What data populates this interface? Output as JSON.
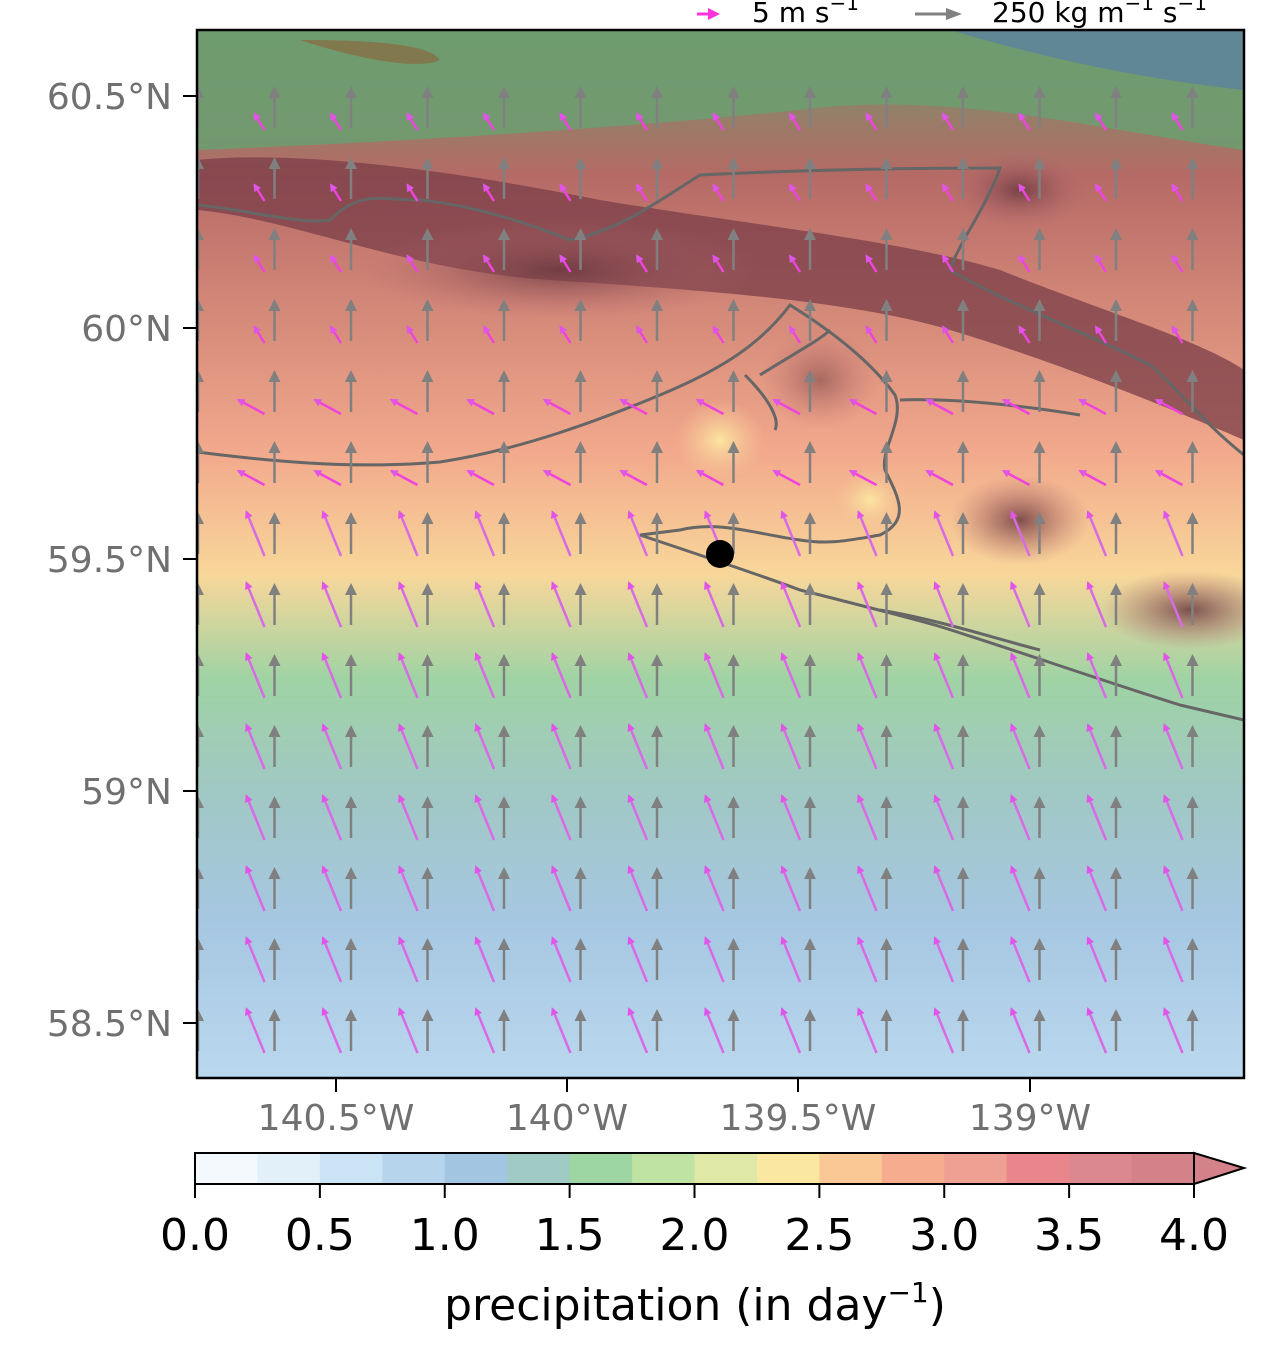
{
  "map": {
    "lat_ticks": [
      "60.5°N",
      "60°N",
      "59.5°N",
      "59°N",
      "58.5°N"
    ],
    "lon_ticks": [
      "140.5°W",
      "140°W",
      "139.5°W",
      "139°W"
    ],
    "lat_range": [
      58.4,
      60.64
    ],
    "lon_range": [
      140.8,
      138.53
    ]
  },
  "legend": {
    "wind_label": "5 m s",
    "wind_sup": "−1",
    "wind_color": "#ff33dd",
    "ivt_label": "250 kg m",
    "ivt_sup1": "−1",
    "ivt_mid": " s",
    "ivt_sup2": "−1",
    "ivt_color": "#808080"
  },
  "colorbar": {
    "ticks": [
      "0.0",
      "0.5",
      "1.0",
      "1.5",
      "2.0",
      "2.5",
      "3.0",
      "3.5",
      "4.0"
    ],
    "label_main": "precipitation (in day",
    "label_sup": "−1",
    "label_close": ")",
    "colors": [
      "#f4f9fd",
      "#e2f0fa",
      "#cbe4f5",
      "#b6d5ec",
      "#a2c5e2",
      "#a0cac4",
      "#9dd5a3",
      "#bfe3a3",
      "#dfe9a5",
      "#fae8a2",
      "#f9c895",
      "#f6ac8e",
      "#eea093",
      "#e8868c",
      "#dc8890",
      "#d38289"
    ],
    "range": [
      0,
      4
    ]
  },
  "marker": {
    "color": "#000000"
  },
  "icons": [
    "magenta-arrow-icon",
    "gray-arrow-icon"
  ]
}
